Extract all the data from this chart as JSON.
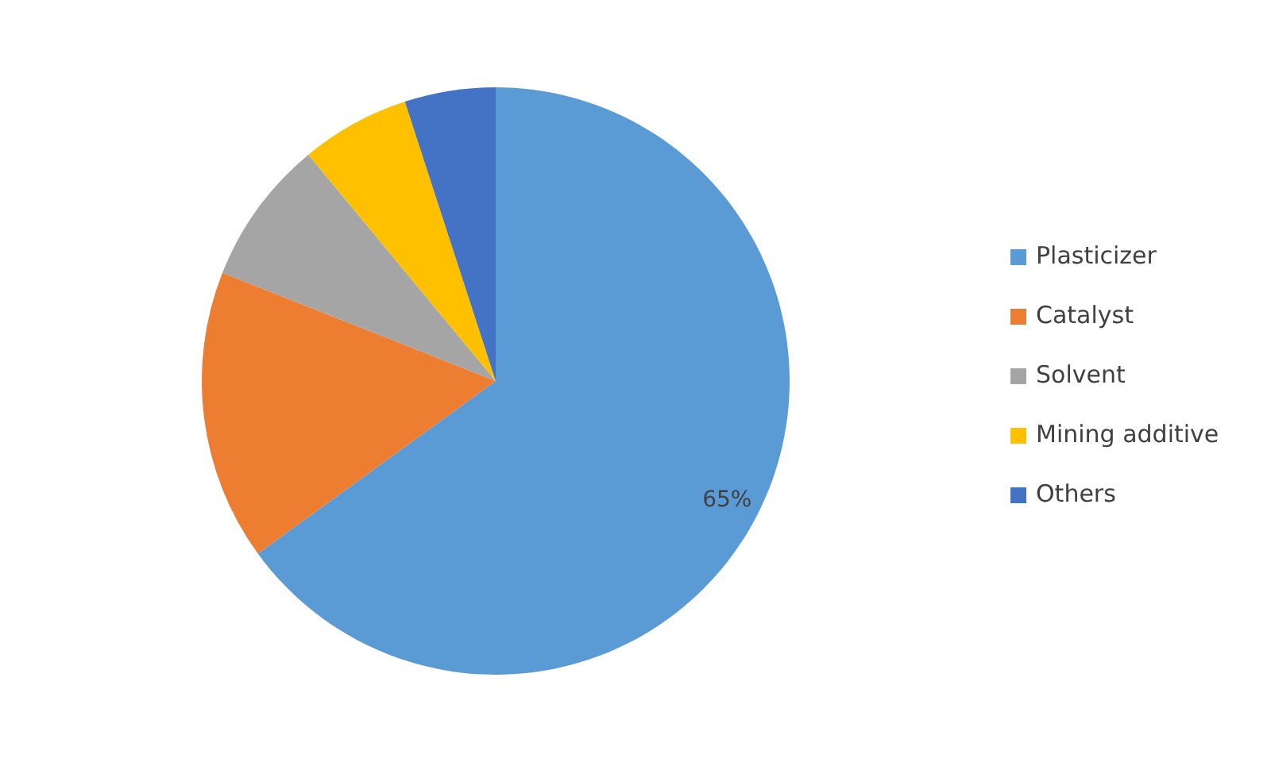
{
  "chart_data": {
    "type": "pie",
    "categories": [
      "Plasticizer",
      "Catalyst",
      "Solvent",
      "Mining additive",
      "Others"
    ],
    "values": [
      65,
      16,
      8,
      6,
      5
    ],
    "colors": [
      "#5b9bd5",
      "#ed7d31",
      "#a5a5a5",
      "#ffc000",
      "#4472c4"
    ],
    "value_labels": [
      "65%",
      null,
      null,
      null,
      null
    ],
    "legend": "right"
  }
}
